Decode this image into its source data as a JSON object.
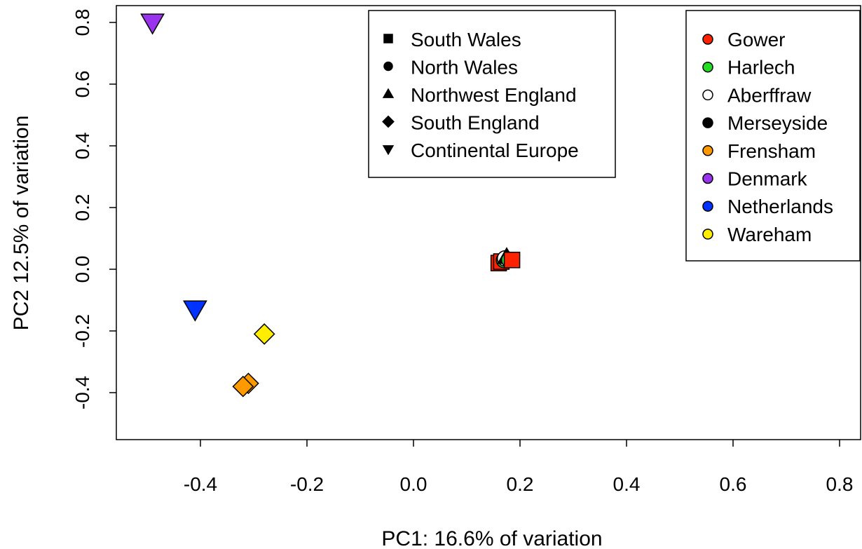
{
  "chart_data": {
    "type": "scatter",
    "title": "",
    "xlabel": "PC1: 16.6% of variation",
    "ylabel": "PC2 12.5% of variation",
    "xlim": [
      -0.55,
      0.8
    ],
    "ylim": [
      -0.55,
      0.85
    ],
    "x_ticks": [
      -0.4,
      -0.2,
      0.0,
      0.2,
      0.4,
      0.6,
      0.8
    ],
    "x_tick_labels": [
      "-0.4",
      "-0.2",
      "0.0",
      "0.2",
      "0.4",
      "0.6",
      "0.8"
    ],
    "y_ticks": [
      -0.4,
      -0.2,
      0.0,
      0.2,
      0.4,
      0.6,
      0.8
    ],
    "y_tick_labels": [
      "-0.4",
      "-0.2",
      "0.0",
      "0.2",
      "0.4",
      "0.6",
      "0.8"
    ],
    "grid": false,
    "shape_legend": {
      "placement": "top-center",
      "entries": [
        {
          "label": "South Wales",
          "shape": "square"
        },
        {
          "label": "North Wales",
          "shape": "circle"
        },
        {
          "label": "Northwest England",
          "shape": "triangle-up"
        },
        {
          "label": "South England",
          "shape": "diamond"
        },
        {
          "label": "Continental Europe",
          "shape": "triangle-down"
        }
      ]
    },
    "color_legend": {
      "placement": "top-right",
      "entries": [
        {
          "label": "Gower",
          "color": "#ff2200"
        },
        {
          "label": "Harlech",
          "color": "#22dd22"
        },
        {
          "label": "Aberffraw",
          "color": "#ffffff"
        },
        {
          "label": "Merseyside",
          "color": "#000000"
        },
        {
          "label": "Frensham",
          "color": "#ff9900"
        },
        {
          "label": "Denmark",
          "color": "#9933ee"
        },
        {
          "label": "Netherlands",
          "color": "#0033ff"
        },
        {
          "label": "Wareham",
          "color": "#ffee00"
        }
      ]
    },
    "points": [
      {
        "x": -0.49,
        "y": 0.8,
        "shape": "triangle-down",
        "color": "#9933ee"
      },
      {
        "x": -0.41,
        "y": -0.13,
        "shape": "triangle-down",
        "color": "#0033ff"
      },
      {
        "x": -0.28,
        "y": -0.21,
        "shape": "diamond",
        "color": "#ffee00"
      },
      {
        "x": -0.31,
        "y": -0.37,
        "shape": "diamond",
        "color": "#ff9900"
      },
      {
        "x": -0.32,
        "y": -0.38,
        "shape": "diamond",
        "color": "#ff9900"
      },
      {
        "x": 0.16,
        "y": 0.02,
        "shape": "square",
        "color": "#ff2200"
      },
      {
        "x": 0.165,
        "y": 0.025,
        "shape": "square",
        "color": "#ff2200"
      },
      {
        "x": 0.17,
        "y": 0.03,
        "shape": "circle",
        "color": "#22dd22"
      },
      {
        "x": 0.172,
        "y": 0.035,
        "shape": "circle",
        "color": "#ffffff"
      },
      {
        "x": 0.175,
        "y": 0.04,
        "shape": "triangle-up",
        "color": "#000000"
      },
      {
        "x": 0.18,
        "y": 0.03,
        "shape": "circle",
        "color": "#22dd22"
      },
      {
        "x": 0.185,
        "y": 0.03,
        "shape": "square",
        "color": "#ff2200"
      }
    ]
  }
}
